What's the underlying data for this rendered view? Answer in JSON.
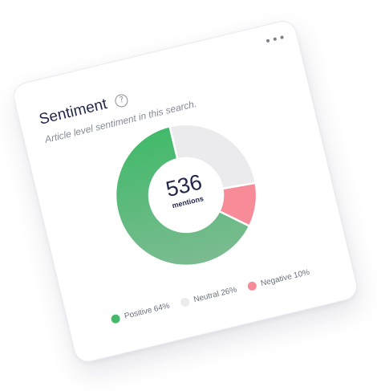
{
  "card": {
    "title": "Sentiment",
    "subtitle": "Article level sentiment in this search.",
    "help_icon": "help-icon",
    "more_icon": "more-horizontal-icon"
  },
  "chart_data": {
    "type": "pie",
    "title": "Sentiment",
    "center_value": "536",
    "center_label": "mentions",
    "series": [
      {
        "name": "Positive 64%",
        "value": 64,
        "color": "#46b86c"
      },
      {
        "name": "Neutral 26%",
        "value": 26,
        "color": "#ebebed"
      },
      {
        "name": "Negative 10%",
        "value": 10,
        "color": "#f78b98"
      }
    ],
    "legend_position": "bottom"
  }
}
